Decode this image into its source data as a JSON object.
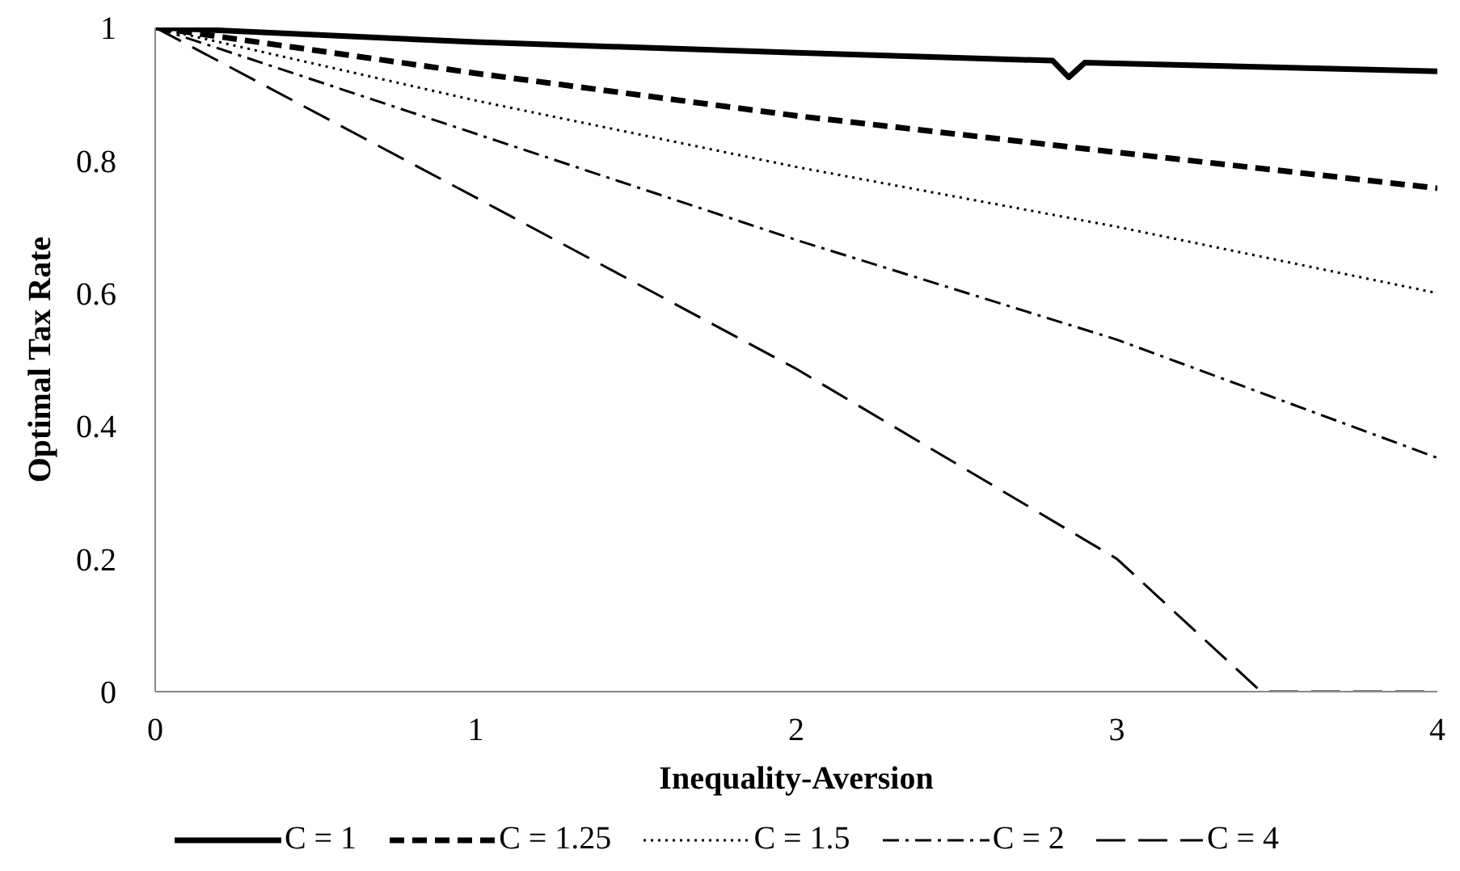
{
  "chart_data": {
    "type": "line",
    "xlabel": "Inequality-Aversion",
    "ylabel": "Optimal Tax Rate",
    "xlim": [
      0,
      4
    ],
    "xticks": [
      0,
      1,
      2,
      3,
      4
    ],
    "ylim": [
      0,
      1
    ],
    "yticks": [
      0,
      0.2,
      0.4,
      0.6,
      0.8,
      1
    ],
    "grid": false,
    "legend": "bottom",
    "marker": "none",
    "series": [
      {
        "name": "C = 1",
        "color": "#000000",
        "line_style": "solid",
        "x": [
          0,
          1,
          2,
          2.8,
          2.85,
          2.9,
          3,
          4
        ],
        "values": [
          1,
          0.978,
          0.962,
          0.95,
          0.925,
          0.947,
          0.946,
          0.934
        ]
      },
      {
        "name": "C = 1.25",
        "color": "#000000",
        "line_style": "dashed",
        "x": [
          0,
          1,
          2,
          3,
          4
        ],
        "values": [
          1,
          0.931,
          0.867,
          0.812,
          0.758
        ]
      },
      {
        "name": "C = 1.5",
        "color": "#000000",
        "line_style": "dotted",
        "x": [
          0,
          1,
          2,
          3,
          4
        ],
        "values": [
          1,
          0.89,
          0.79,
          0.7,
          0.6
        ]
      },
      {
        "name": "C = 2",
        "color": "#000000",
        "line_style": "dashdot",
        "x": [
          0,
          1,
          2,
          3,
          4
        ],
        "values": [
          1,
          0.84,
          0.68,
          0.53,
          0.352
        ]
      },
      {
        "name": "C = 4",
        "color": "#000000",
        "line_style": "longdash",
        "x": [
          0,
          1,
          2,
          3,
          3.45,
          4
        ],
        "values": [
          1,
          0.744,
          0.486,
          0.2,
          0,
          0
        ]
      }
    ]
  }
}
